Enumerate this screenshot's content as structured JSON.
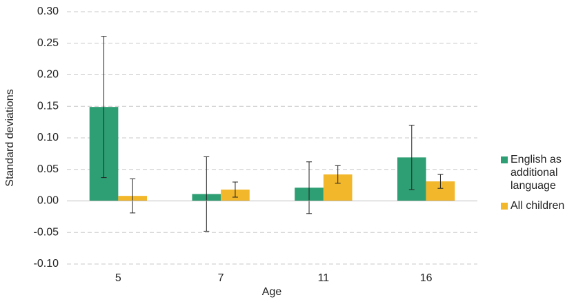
{
  "chart_data": {
    "type": "bar",
    "x_label": "Age",
    "y_label": "Standard deviations",
    "categories": [
      "5",
      "7",
      "11",
      "16"
    ],
    "series": [
      {
        "name": "English as additional language",
        "color": "#2e9f74",
        "values": [
          0.149,
          0.011,
          0.021,
          0.069
        ],
        "errors": [
          0.112,
          0.059,
          0.041,
          0.051
        ]
      },
      {
        "name": "All children",
        "color": "#f2b72a",
        "values": [
          0.008,
          0.018,
          0.042,
          0.031
        ],
        "errors": [
          0.027,
          0.012,
          0.014,
          0.011
        ]
      }
    ],
    "ylim": [
      -0.1,
      0.3
    ],
    "yticks": [
      {
        "value": -0.1,
        "label": "-0.10"
      },
      -0.05,
      {
        "value": 0,
        "label": "0.00"
      },
      0.05,
      {
        "value": 0.1,
        "label": "0.10"
      },
      0.15,
      {
        "value": 0.2,
        "label": "0.20"
      },
      0.25,
      {
        "value": 0.3,
        "label": "0.30"
      }
    ],
    "grid": true,
    "legend": "right"
  }
}
